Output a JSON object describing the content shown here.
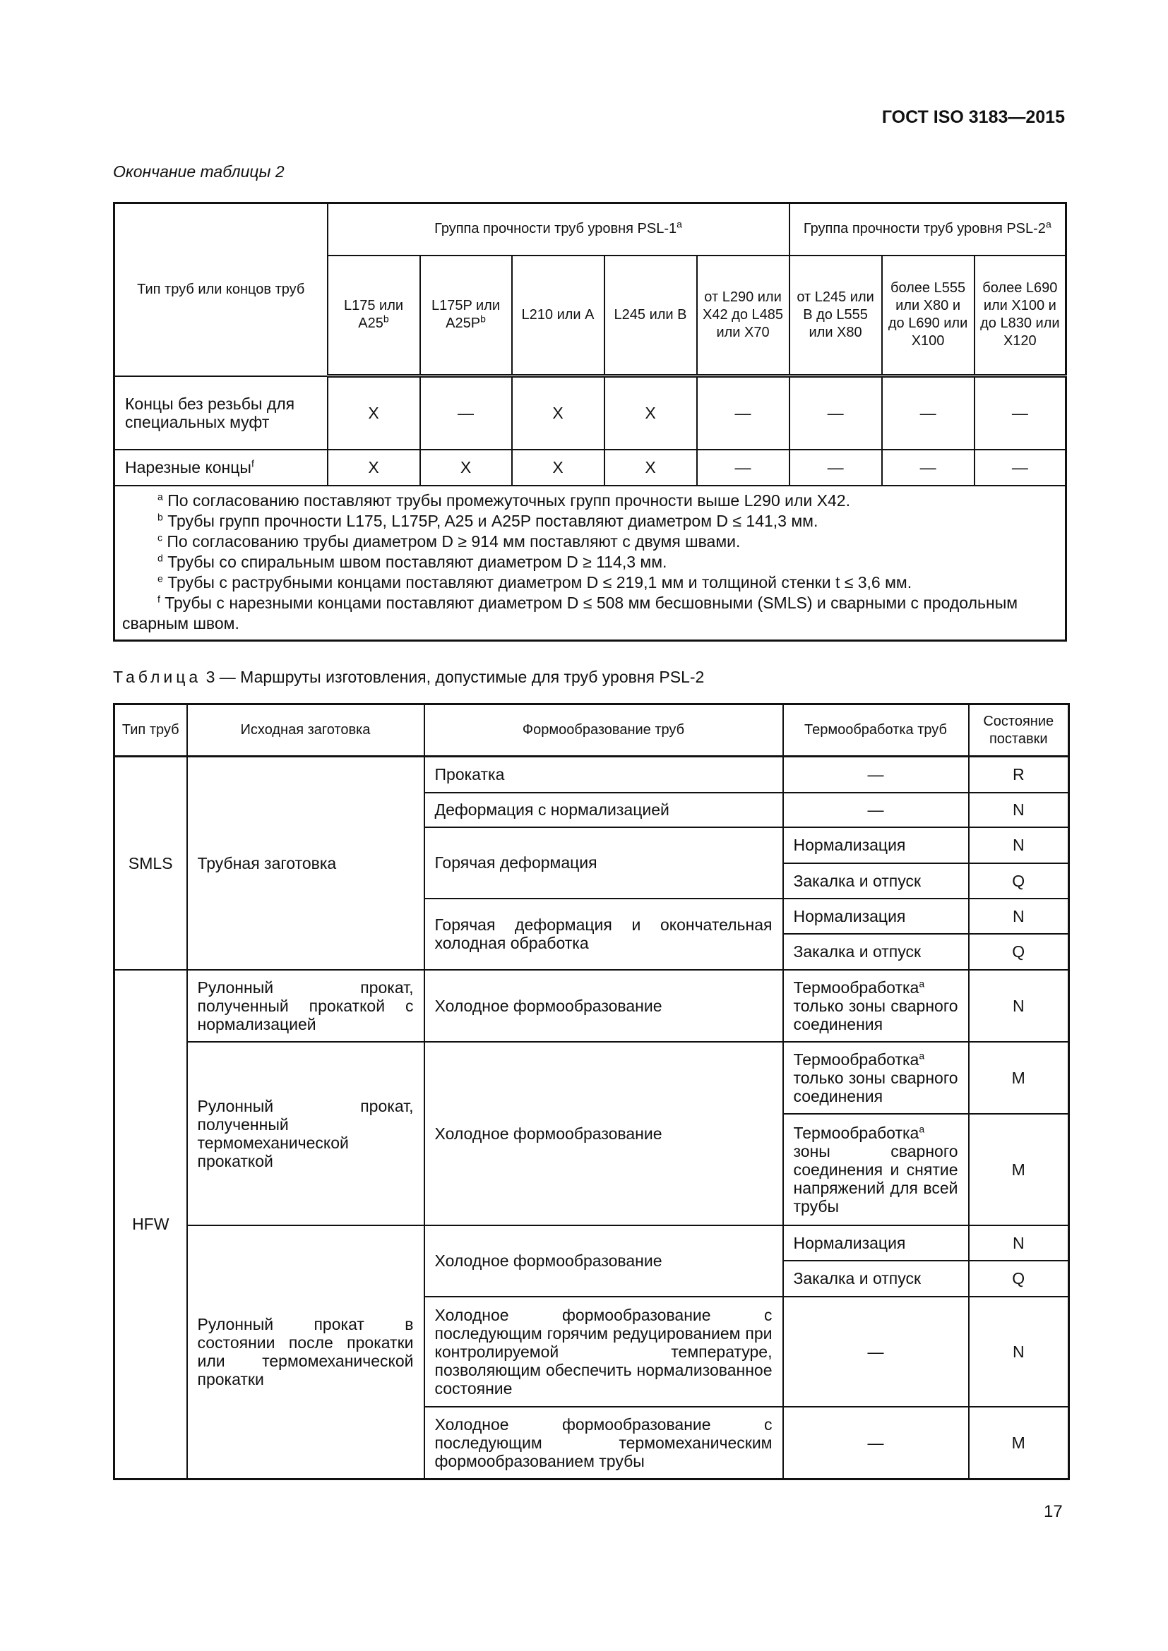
{
  "header": {
    "doc_code": "ГОСТ ISO 3183—2015"
  },
  "table2": {
    "continuation_label": "Окончание таблицы 2",
    "col_type": "Тип труб или концов труб",
    "group_psl1": {
      "text": "Группа прочности труб уровня PSL-1",
      "sup": "a"
    },
    "group_psl2": {
      "text": "Группа прочности труб уровня PSL-2",
      "sup": "a"
    },
    "grades": [
      {
        "text": "L175 или A25",
        "sup": "b"
      },
      {
        "text": "L175P или A25P",
        "sup": "b"
      },
      {
        "text": "L210 или A",
        "sup": ""
      },
      {
        "text": "L245 или B",
        "sup": ""
      },
      {
        "text": "от L290 или X42 до L485 или X70",
        "sup": ""
      },
      {
        "text": "от L245 или B до L555 или X80",
        "sup": ""
      },
      {
        "text": "более L555 или X80 и до L690 или X100",
        "sup": ""
      },
      {
        "text": "более L690 или X100 и до L830 или X120",
        "sup": ""
      }
    ],
    "rows": [
      {
        "label": "Концы без резьбы для специальных муфт",
        "sup": "",
        "values": [
          "X",
          "—",
          "X",
          "X",
          "—",
          "—",
          "—",
          "—"
        ]
      },
      {
        "label": "Нарезные концы",
        "sup": "f",
        "values": [
          "X",
          "X",
          "X",
          "X",
          "—",
          "—",
          "—",
          "—"
        ]
      }
    ],
    "footnotes": [
      {
        "mark": "a",
        "text": "По согласованию поставляют трубы промежуточных групп прочности выше L290 или X42."
      },
      {
        "mark": "b",
        "text": "Трубы групп прочности L175, L175P, A25 и A25P поставляют диаметром D ≤ 141,3 мм."
      },
      {
        "mark": "c",
        "text": "По согласованию трубы диаметром D ≥ 914 мм поставляют с двумя швами."
      },
      {
        "mark": "d",
        "text": "Трубы со спиральным швом поставляют диаметром D ≥ 114,3 мм."
      },
      {
        "mark": "e",
        "text": "Трубы с раструбными концами поставляют диаметром D ≤ 219,1 мм и толщиной стенки t ≤ 3,6 мм."
      },
      {
        "mark": "f",
        "text": "Трубы с нарезными концами поставляют диаметром D ≤ 508 мм бесшовными (SMLS) и сварными с продольным сварным швом."
      }
    ]
  },
  "table3": {
    "caption_word": "Таблица",
    "caption_rest": "3 — Маршруты изготовления, допустимые для труб уровня PSL-2",
    "headers": [
      "Тип труб",
      "Исходная заготовка",
      "Формообразование труб",
      "Термообработка труб",
      "Состояние поставки"
    ],
    "smls": "SMLS",
    "hfw": "HFW",
    "billet": "Трубная заготовка",
    "rolling": "Прокатка",
    "def_norm": "Деформация с нормализацией",
    "hot_def": "Горячая деформация",
    "hot_cold": "Горячая деформация и окончательная холодная обработка",
    "coil_norm": "Рулонный прокат, полученный прокаткой с нормализацией",
    "coil_tmcp": "Рулонный прокат, полученный термомеханической прокаткой",
    "coil_asrolled": "Рулонный прокат в состоянии после прокатки или термомеханической прокатки",
    "cold_forming": "Холодное формообразование",
    "cold_hot_reduce": "Холодное формообразование с последующим горячим редуцированием при контролируемой температуре, позволяющим обеспечить нормализованное состояние",
    "cold_tm_forming": "Холодное формообразование с последующим термомеханическим формообразованием трубы",
    "dash": "—",
    "normalizing": "Нормализация",
    "qt": "Закалка и отпуск",
    "ht_word": "Термообработка",
    "ht_sup": "a",
    "ht_weld_only": "только зоны сварного соединения",
    "ht_weld_stress": "зоны сварного соединения и снятие напряжений для всей трубы",
    "cond": {
      "R": "R",
      "N": "N",
      "Q": "Q",
      "M": "M"
    }
  },
  "page_number": "17"
}
